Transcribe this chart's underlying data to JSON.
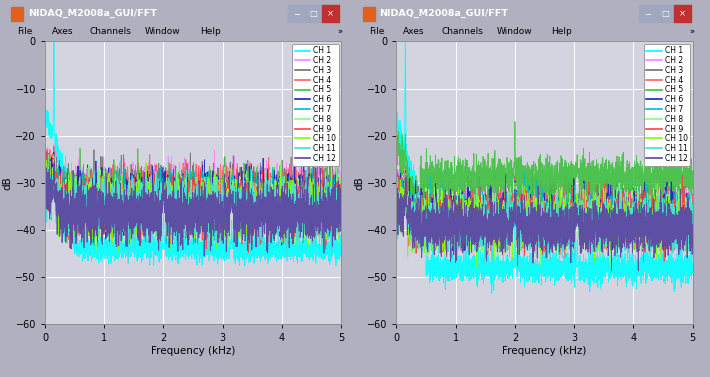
{
  "title": "NIDAQ_M2008a_GUI/FFT",
  "xlabel": "Frequency (kHz)",
  "ylabel": "dB",
  "xlim": [
    0,
    5
  ],
  "ylim": [
    -60,
    0
  ],
  "yticks": [
    0,
    -10,
    -20,
    -30,
    -40,
    -50,
    -60
  ],
  "xticks": [
    0,
    1,
    2,
    3,
    4,
    5
  ],
  "channels": [
    "CH 1",
    "CH 2",
    "CH 3",
    "CH 4",
    "CH 5",
    "CH 6",
    "CH 7",
    "CH 8",
    "CH 9",
    "CH 10",
    "CH 11",
    "CH 12"
  ],
  "colors": [
    "#00FFFF",
    "#FF80FF",
    "#707070",
    "#FF6060",
    "#40C040",
    "#2020C0",
    "#00C0C0",
    "#80FF80",
    "#FF4040",
    "#80FF00",
    "#40E0E0",
    "#6040A0"
  ],
  "bg_color": "#B0B0C0",
  "plot_bg": "#D4D4E0",
  "window_title_bg": "#5070B0",
  "menu_bg": "#D0D0D8",
  "line_width": 0.6
}
